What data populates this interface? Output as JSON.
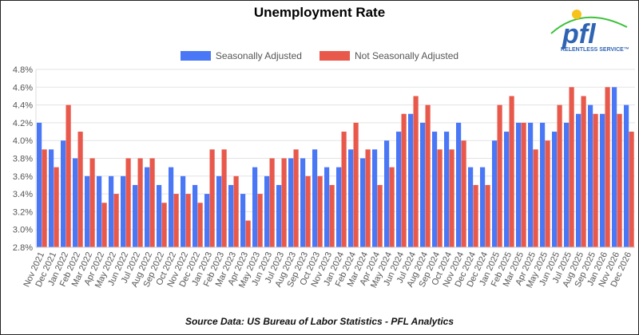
{
  "chart_data": {
    "type": "bar",
    "title": "Unemployment Rate",
    "xlabel": "",
    "ylabel": "",
    "ylim": [
      2.8,
      4.8
    ],
    "yticks": [
      "2.8%",
      "3.0%",
      "3.2%",
      "3.4%",
      "3.6%",
      "3.8%",
      "4.0%",
      "4.2%",
      "4.4%",
      "4.6%",
      "4.8%"
    ],
    "grid": true,
    "legend_position": "top",
    "categories": [
      "Nov 2021",
      "Dec 2021",
      "Jan 2022",
      "Feb 2022",
      "Mar 2022",
      "Apr 2022",
      "May 2022",
      "Jun 2022",
      "Jul 2022",
      "Aug 2022",
      "Sep 2022",
      "Oct 2022",
      "Nov 2022",
      "Dec 2022",
      "Jan 2023",
      "Feb 2023",
      "Mar 2023",
      "Apr 2023",
      "May 2023",
      "Jun 2023",
      "Jul 2023",
      "Aug 2023",
      "Sep 2023",
      "Oct 2023",
      "Nov 2023",
      "Jan 2024",
      "Feb 2024",
      "Mar 2024",
      "Apr 2024",
      "May 2024",
      "Jun 2024",
      "Jul 2024",
      "Aug 2024",
      "Sep 2024",
      "Oct 2024",
      "Nov 2024",
      "Dec 2024",
      "Dec 2024",
      "Jan 2025",
      "Feb 2025",
      "Mar 2025",
      "Apr 2025",
      "May 2025",
      "Jun 2025",
      "Jul 2025",
      "Aug 2025",
      "Sep 2025",
      "Jan 2026",
      "Nov 2026",
      "Dec 2026"
    ],
    "series": [
      {
        "name": "Seasonally Adjusted",
        "color": "#4a77f5",
        "values": [
          4.2,
          3.9,
          4.0,
          3.8,
          3.6,
          3.6,
          3.6,
          3.6,
          3.5,
          3.7,
          3.5,
          3.7,
          3.6,
          3.5,
          3.4,
          3.6,
          3.5,
          3.4,
          3.7,
          3.6,
          3.5,
          3.8,
          3.8,
          3.9,
          3.7,
          3.7,
          3.9,
          3.8,
          3.9,
          4.0,
          4.1,
          4.3,
          4.2,
          4.1,
          4.1,
          4.2,
          3.7,
          3.7,
          4.0,
          4.1,
          4.2,
          4.2,
          4.2,
          4.1,
          4.2,
          4.3,
          4.4,
          4.3,
          4.6,
          4.4
        ]
      },
      {
        "name": "Not Seasonally Adjusted",
        "color": "#e8594c",
        "values": [
          3.9,
          3.7,
          4.4,
          4.1,
          3.8,
          3.3,
          3.4,
          3.8,
          3.8,
          3.8,
          3.3,
          3.4,
          3.4,
          3.3,
          3.9,
          3.9,
          3.6,
          3.1,
          3.4,
          3.8,
          3.8,
          3.9,
          3.6,
          3.6,
          3.5,
          4.1,
          4.2,
          3.9,
          3.5,
          3.7,
          4.3,
          4.5,
          4.4,
          3.9,
          3.9,
          4.0,
          3.5,
          3.5,
          4.4,
          4.5,
          4.2,
          3.9,
          4.0,
          4.4,
          4.6,
          4.5,
          4.3,
          4.6,
          4.3,
          4.1
        ]
      }
    ],
    "source": "Source Data:  US Bureau of Labor Statistics - PFL Analytics"
  },
  "logo": {
    "text": "pfl",
    "tagline": "RELENTLESS SERVICE™"
  }
}
